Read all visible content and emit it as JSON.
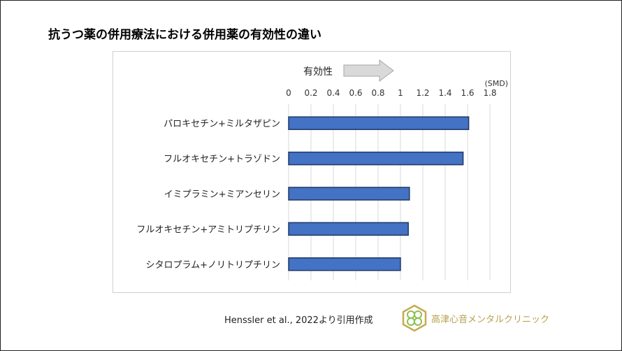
{
  "title": "抗うつ薬の併用療法における併用薬の有効性の違い",
  "citation": "Henssler et al., 2022より引用作成",
  "clinic_name": "高津心音メンタルクリニック",
  "chart_data": {
    "type": "bar",
    "orientation": "horizontal",
    "categories": [
      "パロキセチン+ミルタザピン",
      "フルオキセチン+トラゾドン",
      "イミプラミン+ミアンセリン",
      "フルオキセチン+アミトリプチリン",
      "シタロプラム+ノリトリプチリン"
    ],
    "values": [
      1.61,
      1.56,
      1.08,
      1.07,
      1.0
    ],
    "unit_label": "(SMD)",
    "direction_label": "有効性",
    "xlim": [
      0,
      1.8
    ],
    "ticks": [
      "0",
      "0.2",
      "0.4",
      "0.6",
      "0.8",
      "1",
      "1.2",
      "1.4",
      "1.6",
      "1.8"
    ],
    "grid": true,
    "bar_color": "#4472c4",
    "bar_edge_color": "#1f3864"
  }
}
